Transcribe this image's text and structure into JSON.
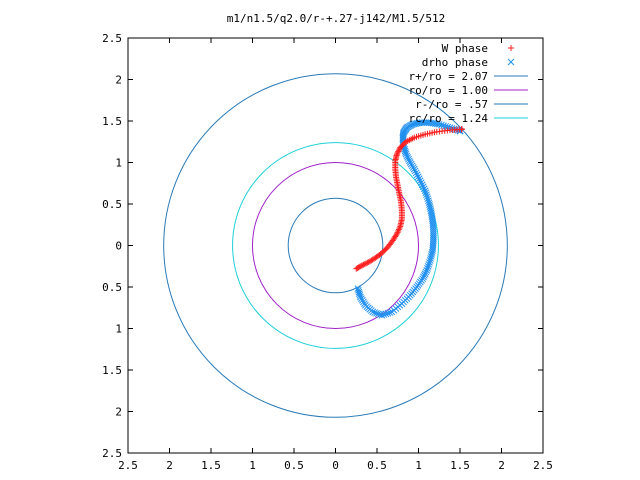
{
  "chart_data": {
    "type": "scatter",
    "title": "m1/n1.5/q2.0/r-+.27-j142/M1.5/512",
    "xlabel": "",
    "ylabel": "",
    "xlim": [
      -2.5,
      2.5
    ],
    "ylim": [
      -2.5,
      2.5
    ],
    "x_ticks": [
      -2.5,
      -2,
      -1.5,
      -1,
      -0.5,
      0,
      0.5,
      1,
      1.5,
      2,
      2.5
    ],
    "x_tick_labels": [
      "2.5",
      "2",
      "1.5",
      "1",
      "0.5",
      "0",
      "0.5",
      "1",
      "1.5",
      "2",
      "2.5"
    ],
    "y_ticks": [
      2.5,
      2,
      1.5,
      1,
      0.5,
      0,
      -0.5,
      -1,
      -1.5,
      -2,
      -2.5
    ],
    "y_tick_labels": [
      "2.5",
      "2",
      "1.5",
      "1",
      "0.5",
      "0",
      "0.5",
      "1",
      "1.5",
      "2",
      "2.5"
    ],
    "grid": false,
    "legend_position": "top-right",
    "circles": [
      {
        "name": "r+/ro = 2.07",
        "radius": 2.07,
        "color": "#2a7ab8"
      },
      {
        "name": "ro/ro = 1.00",
        "radius": 1.0,
        "color": "#a020c8"
      },
      {
        "name": "r-/ro = .57",
        "radius": 0.57,
        "color": "#2a7ab8"
      },
      {
        "name": "rc/ro = 1.24",
        "radius": 1.24,
        "color": "#20d0d8"
      }
    ],
    "series": [
      {
        "name": "W phase",
        "marker": "+",
        "color": "#ff2020",
        "x": [
          0.25,
          0.32,
          0.4,
          0.48,
          0.56,
          0.63,
          0.69,
          0.74,
          0.78,
          0.8,
          0.8,
          0.79,
          0.77,
          0.75,
          0.73,
          0.72,
          0.72,
          0.74,
          0.78,
          0.85,
          0.95,
          1.08,
          1.22,
          1.38,
          1.52
        ],
        "y": [
          -0.28,
          -0.24,
          -0.2,
          -0.15,
          -0.09,
          -0.02,
          0.06,
          0.14,
          0.23,
          0.32,
          0.42,
          0.52,
          0.62,
          0.72,
          0.82,
          0.92,
          1.02,
          1.1,
          1.18,
          1.25,
          1.3,
          1.34,
          1.37,
          1.39,
          1.4
        ]
      },
      {
        "name": "drho phase",
        "marker": "x",
        "color": "#2090f0",
        "x": [
          0.27,
          0.3,
          0.36,
          0.45,
          0.56,
          0.68,
          0.8,
          0.9,
          0.98,
          1.05,
          1.1,
          1.14,
          1.17,
          1.18,
          1.18,
          1.17,
          1.15,
          1.12,
          1.08,
          1.02,
          0.96,
          0.9,
          0.85,
          0.82,
          0.81,
          0.82,
          0.86,
          0.93,
          1.02,
          1.13,
          1.25,
          1.38,
          1.5
        ],
        "y": [
          -0.52,
          -0.62,
          -0.72,
          -0.8,
          -0.84,
          -0.8,
          -0.7,
          -0.6,
          -0.5,
          -0.4,
          -0.3,
          -0.18,
          -0.06,
          0.06,
          0.18,
          0.3,
          0.42,
          0.54,
          0.66,
          0.78,
          0.9,
          1.0,
          1.1,
          1.2,
          1.29,
          1.36,
          1.42,
          1.46,
          1.48,
          1.48,
          1.46,
          1.42,
          1.38
        ]
      }
    ]
  }
}
